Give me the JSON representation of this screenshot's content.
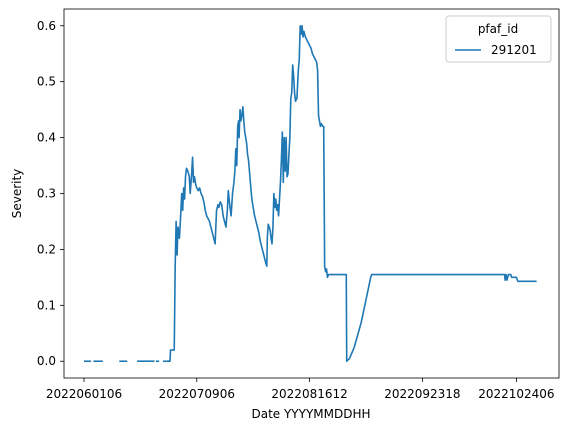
{
  "chart_data": {
    "type": "line",
    "title": "",
    "xlabel": "Date YYYYMMDDHH",
    "ylabel": "Severity",
    "x_ticks": [
      "2022060106",
      "2022070906",
      "2022081612",
      "2022092318",
      "2022102406"
    ],
    "y_ticks": [
      "0.0",
      "0.1",
      "0.2",
      "0.3",
      "0.4",
      "0.5",
      "0.6"
    ],
    "ylim": [
      -0.03,
      0.63
    ],
    "x_index_range": [
      0,
      100
    ],
    "x_tick_positions": [
      0,
      24,
      48,
      72,
      92
    ],
    "legend": {
      "title": "pfaf_id",
      "position": "upper right",
      "entries": [
        "291201"
      ]
    },
    "colors": {
      "series": "#1f77b4"
    },
    "series": [
      {
        "name": "291201",
        "segments": [
          [
            [
              0,
              0.0
            ],
            [
              1.5,
              0.0
            ]
          ],
          [
            [
              2,
              0.0
            ],
            [
              4,
              0.0
            ]
          ],
          [
            [
              7.5,
              0.0
            ],
            [
              9.2,
              0.0
            ]
          ],
          [
            [
              11.3,
              0.0
            ],
            [
              15,
              0.0
            ]
          ],
          [
            [
              15.3,
              0.0
            ],
            [
              16,
              0.0
            ]
          ],
          [
            [
              16.8,
              0.0
            ],
            [
              17.6,
              0.0
            ]
          ],
          [
            [
              17.6,
              0.0
            ],
            [
              18.3,
              0.0
            ],
            [
              18.4,
              0.02
            ],
            [
              19.2,
              0.02
            ],
            [
              19.4,
              0.17
            ],
            [
              19.6,
              0.25
            ],
            [
              19.8,
              0.19
            ],
            [
              20.0,
              0.24
            ],
            [
              20.3,
              0.22
            ],
            [
              20.5,
              0.25
            ],
            [
              20.8,
              0.3
            ],
            [
              21.0,
              0.27
            ],
            [
              21.2,
              0.31
            ],
            [
              21.4,
              0.29
            ],
            [
              21.6,
              0.33
            ],
            [
              21.8,
              0.345
            ],
            [
              22.1,
              0.34
            ],
            [
              22.4,
              0.33
            ],
            [
              22.6,
              0.3
            ],
            [
              22.9,
              0.335
            ],
            [
              23.1,
              0.365
            ],
            [
              23.3,
              0.32
            ],
            [
              23.5,
              0.33
            ],
            [
              23.8,
              0.315
            ],
            [
              24.0,
              0.31
            ],
            [
              24.3,
              0.305
            ],
            [
              24.6,
              0.31
            ],
            [
              24.9,
              0.3
            ],
            [
              25.2,
              0.295
            ],
            [
              25.5,
              0.285
            ],
            [
              25.8,
              0.27
            ],
            [
              26.1,
              0.26
            ],
            [
              26.4,
              0.255
            ],
            [
              26.7,
              0.25
            ],
            [
              27.0,
              0.24
            ],
            [
              27.3,
              0.23
            ],
            [
              27.6,
              0.22
            ],
            [
              27.9,
              0.21
            ],
            [
              28.2,
              0.27
            ],
            [
              28.5,
              0.28
            ],
            [
              28.7,
              0.275
            ],
            [
              29.0,
              0.285
            ],
            [
              29.3,
              0.28
            ],
            [
              29.6,
              0.26
            ],
            [
              29.9,
              0.25
            ],
            [
              30.2,
              0.24
            ],
            [
              30.5,
              0.27
            ],
            [
              30.7,
              0.305
            ],
            [
              31.0,
              0.28
            ],
            [
              31.3,
              0.26
            ],
            [
              31.6,
              0.3
            ],
            [
              31.9,
              0.32
            ],
            [
              32.1,
              0.34
            ],
            [
              32.3,
              0.38
            ],
            [
              32.5,
              0.35
            ],
            [
              32.7,
              0.42
            ],
            [
              32.9,
              0.43
            ],
            [
              33.0,
              0.4
            ],
            [
              33.2,
              0.45
            ],
            [
              33.4,
              0.43
            ],
            [
              33.6,
              0.44
            ],
            [
              33.8,
              0.455
            ],
            [
              34.0,
              0.43
            ],
            [
              34.2,
              0.41
            ],
            [
              34.4,
              0.4
            ],
            [
              34.6,
              0.39
            ],
            [
              34.8,
              0.37
            ],
            [
              35.0,
              0.36
            ],
            [
              35.2,
              0.34
            ],
            [
              35.4,
              0.32
            ],
            [
              35.6,
              0.3
            ],
            [
              35.8,
              0.285
            ],
            [
              36.0,
              0.275
            ],
            [
              36.3,
              0.26
            ],
            [
              36.6,
              0.25
            ],
            [
              36.9,
              0.24
            ],
            [
              37.2,
              0.23
            ],
            [
              37.5,
              0.215
            ],
            [
              37.8,
              0.205
            ],
            [
              38.1,
              0.195
            ],
            [
              38.4,
              0.185
            ],
            [
              38.7,
              0.175
            ],
            [
              38.9,
              0.17
            ],
            [
              39.0,
              0.22
            ],
            [
              39.2,
              0.245
            ],
            [
              39.4,
              0.24
            ],
            [
              39.6,
              0.235
            ],
            [
              39.8,
              0.22
            ],
            [
              40.0,
              0.21
            ],
            [
              40.2,
              0.24
            ],
            [
              40.4,
              0.3
            ],
            [
              40.6,
              0.275
            ],
            [
              40.8,
              0.29
            ],
            [
              41.0,
              0.27
            ],
            [
              41.2,
              0.28
            ],
            [
              41.4,
              0.26
            ],
            [
              41.6,
              0.29
            ],
            [
              41.8,
              0.32
            ],
            [
              42.0,
              0.36
            ],
            [
              42.2,
              0.41
            ],
            [
              42.4,
              0.32
            ],
            [
              42.6,
              0.4
            ],
            [
              42.8,
              0.34
            ],
            [
              43.0,
              0.4
            ],
            [
              43.2,
              0.33
            ],
            [
              43.4,
              0.335
            ],
            [
              43.6,
              0.37
            ],
            [
              43.8,
              0.4
            ],
            [
              44.0,
              0.47
            ],
            [
              44.2,
              0.48
            ],
            [
              44.4,
              0.53
            ],
            [
              44.6,
              0.51
            ],
            [
              44.8,
              0.48
            ],
            [
              45.0,
              0.465
            ],
            [
              45.3,
              0.47
            ],
            [
              45.6,
              0.52
            ],
            [
              45.8,
              0.54
            ],
            [
              46.0,
              0.6
            ],
            [
              46.2,
              0.585
            ],
            [
              46.4,
              0.6
            ],
            [
              46.6,
              0.58
            ],
            [
              46.8,
              0.59
            ],
            [
              47.1,
              0.58
            ],
            [
              47.4,
              0.575
            ],
            [
              47.7,
              0.57
            ],
            [
              48.0,
              0.565
            ],
            [
              48.3,
              0.56
            ],
            [
              48.6,
              0.55
            ],
            [
              48.9,
              0.545
            ],
            [
              49.2,
              0.54
            ],
            [
              49.5,
              0.535
            ],
            [
              49.7,
              0.52
            ],
            [
              49.9,
              0.44
            ],
            [
              50.1,
              0.43
            ],
            [
              50.3,
              0.42
            ],
            [
              50.5,
              0.425
            ],
            [
              50.8,
              0.42
            ],
            [
              51.0,
              0.42
            ],
            [
              51.2,
              0.17
            ],
            [
              51.4,
              0.16
            ],
            [
              51.6,
              0.165
            ],
            [
              51.8,
              0.15
            ],
            [
              52.0,
              0.155
            ],
            [
              53.0,
              0.155
            ],
            [
              54.0,
              0.155
            ],
            [
              55.0,
              0.155
            ],
            [
              55.8,
              0.155
            ],
            [
              55.9,
              0.0
            ],
            [
              56.5,
              0.005
            ],
            [
              57.0,
              0.015
            ],
            [
              57.5,
              0.025
            ],
            [
              58.0,
              0.04
            ],
            [
              58.5,
              0.055
            ],
            [
              59.0,
              0.07
            ],
            [
              59.5,
              0.09
            ],
            [
              60.0,
              0.11
            ],
            [
              60.5,
              0.13
            ],
            [
              61.0,
              0.15
            ],
            [
              61.2,
              0.155
            ],
            [
              65.0,
              0.155
            ],
            [
              70.0,
              0.155
            ],
            [
              75.0,
              0.155
            ],
            [
              80.0,
              0.155
            ],
            [
              85.0,
              0.155
            ],
            [
              88.0,
              0.155
            ],
            [
              89.5,
              0.155
            ],
            [
              89.6,
              0.145
            ],
            [
              89.8,
              0.155
            ],
            [
              90.0,
              0.145
            ],
            [
              90.3,
              0.155
            ],
            [
              90.8,
              0.155
            ],
            [
              91.0,
              0.15
            ],
            [
              92.0,
              0.15
            ],
            [
              92.3,
              0.143
            ],
            [
              93.0,
              0.143
            ],
            [
              96.3,
              0.143
            ]
          ]
        ]
      }
    ]
  }
}
